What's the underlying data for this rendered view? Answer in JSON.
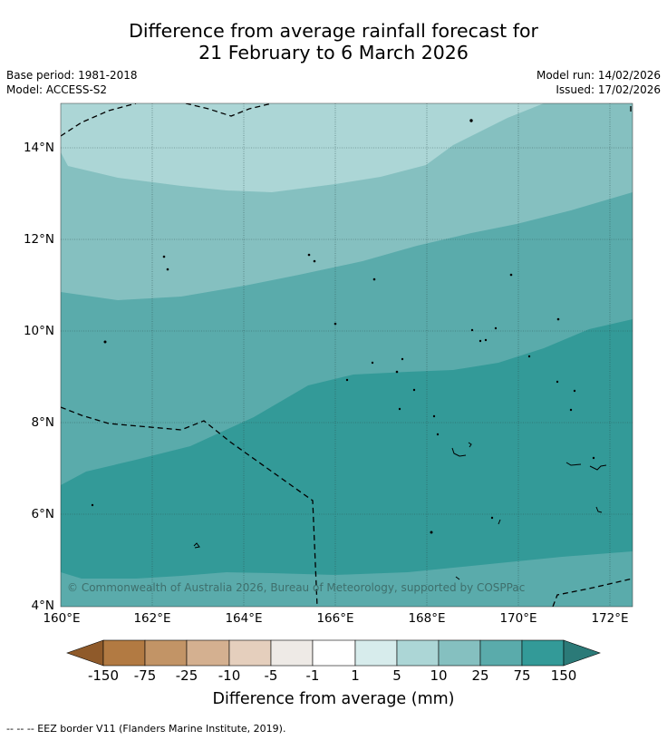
{
  "title": {
    "line1": "Difference from average rainfall forecast for",
    "line2": "21 February to 6 March 2026"
  },
  "meta": {
    "base_period": "Base period: 1981-2018",
    "model": "Model: ACCESS-S2",
    "model_run": "Model run: 14/02/2026",
    "issued": "Issued: 17/02/2026"
  },
  "map": {
    "lat_labels": [
      "14°N",
      "12°N",
      "10°N",
      "8°N",
      "6°N",
      "4°N"
    ],
    "lon_labels": [
      "160°E",
      "162°E",
      "164°E",
      "166°E",
      "168°E",
      "170°E",
      "172°E"
    ],
    "copyright": "© Commonwealth of Australia 2026, Bureau of Meteorology, supported by COSPPac",
    "layer_colors": {
      "very_light": "#acd6d6",
      "light": "#85c0c0",
      "mid": "#5aabab",
      "dark": "#339a98"
    }
  },
  "colorbar": {
    "title": "Difference from average (mm)",
    "ticks": [
      "-150",
      "-75",
      "-25",
      "-10",
      "-5",
      "-1",
      "1",
      "5",
      "10",
      "25",
      "75",
      "150"
    ],
    "colors": [
      "#8f5a2a",
      "#b27a42",
      "#c29466",
      "#d4b090",
      "#e5cfbd",
      "#eeeae6",
      "#ffffff",
      "#d7ecec",
      "#acd6d6",
      "#85c0c0",
      "#5aabab",
      "#339a98",
      "#2b7a78"
    ]
  },
  "footnote": "-- -- -- EEZ border V11 (Flanders Marine Institute, 2019)."
}
